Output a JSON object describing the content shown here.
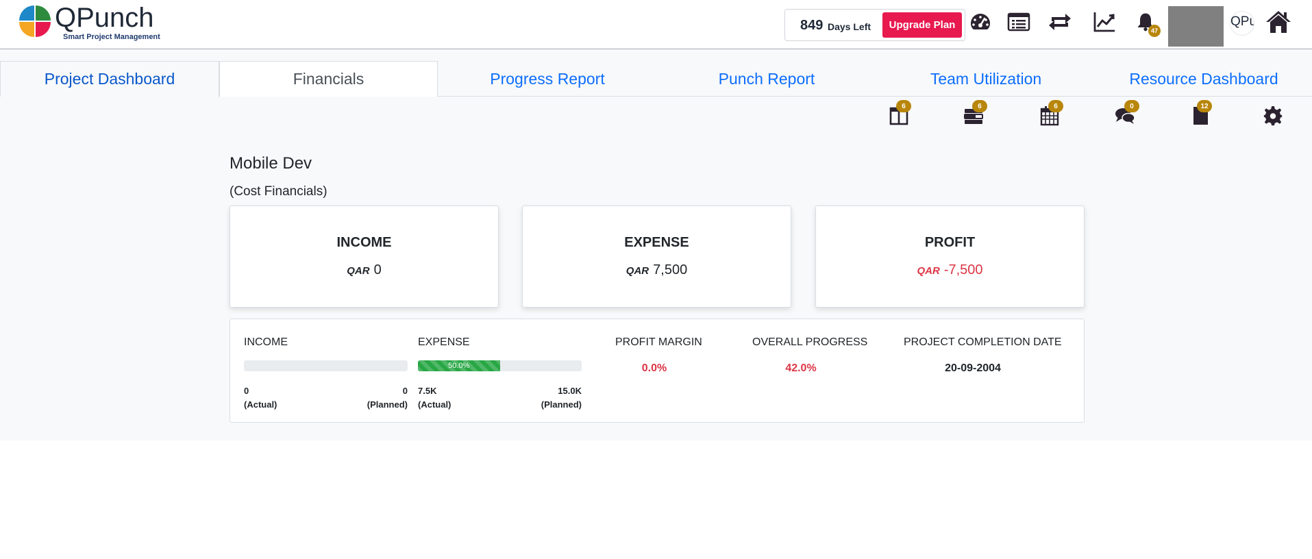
{
  "header": {
    "logo_word": "QPunch",
    "logo_tagline": "Smart Project Management",
    "days_left_value": "849",
    "days_left_label": "Days Left",
    "upgrade_label": "Upgrade Plan",
    "notifications_count": "47",
    "mini_logo_text": "QPu",
    "icons": [
      "dashboard-gauge-icon",
      "list-icon",
      "sync-icon",
      "line-chart-icon",
      "bell-icon",
      "home-icon"
    ]
  },
  "tabs": [
    {
      "label": "Project Dashboard"
    },
    {
      "label": "Financials"
    },
    {
      "label": "Progress Report"
    },
    {
      "label": "Punch Report"
    },
    {
      "label": "Team Utilization"
    },
    {
      "label": "Resource Dashboard"
    }
  ],
  "toolbar": {
    "badges": [
      "6",
      "6",
      "6",
      "0",
      "12"
    ],
    "icons": [
      "columns-icon",
      "tasks-icon",
      "calendar-icon",
      "comments-icon",
      "document-icon",
      "settings-icon"
    ]
  },
  "project": {
    "title": "Mobile Dev",
    "subtitle": "(Cost Financials)"
  },
  "cards": {
    "currency": "QAR",
    "income": {
      "title": "INCOME",
      "value": "0"
    },
    "expense": {
      "title": "EXPENSE",
      "value": "7,500"
    },
    "profit": {
      "title": "PROFIT",
      "value": "-7,500"
    }
  },
  "summary": {
    "income": {
      "label": "INCOME",
      "actual": "0",
      "actual_label": "(Actual)",
      "planned": "0",
      "planned_label": "(Planned)",
      "fraction": 0
    },
    "expense": {
      "label": "EXPENSE",
      "bar_text": "50.0%",
      "actual": "7.5K",
      "actual_label": "(Actual)",
      "planned": "15.0K",
      "planned_label": "(Planned)",
      "fraction": 0.5
    },
    "profit_margin": {
      "label": "PROFIT MARGIN",
      "value": "0.0%"
    },
    "overall_progress": {
      "label": "OVERALL PROGRESS",
      "value": "42.0%"
    },
    "completion_date": {
      "label": "PROJECT COMPLETION DATE",
      "value": "20-09-2004"
    }
  },
  "colors": {
    "accent_blue": "#0d6efd",
    "upgrade_red": "#e8194f",
    "negative_red": "#dc3545",
    "progress_green": "#28a745",
    "badge_gold": "#b8860b"
  }
}
